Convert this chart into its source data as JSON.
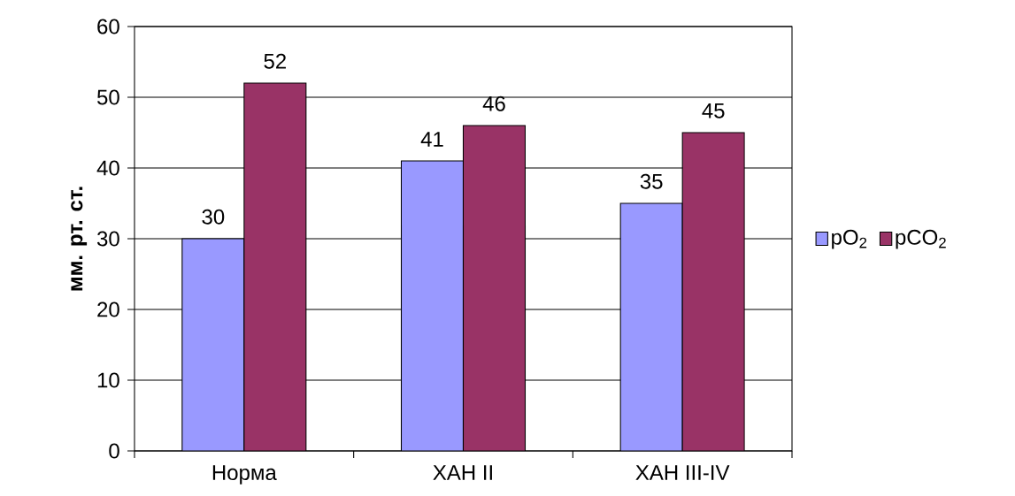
{
  "chart_data": {
    "type": "bar",
    "ylabel": "мм. рт. ст.",
    "categories": [
      "Норма",
      "ХАН II",
      "ХАН III-IV"
    ],
    "series": [
      {
        "name": "pO$_{2}$",
        "color": "#9999ff",
        "values": [
          30,
          41,
          35
        ]
      },
      {
        "name": "pCO$_{2}$",
        "color": "#993366",
        "values": [
          52,
          46,
          45
        ]
      }
    ],
    "ylim": [
      0,
      60
    ],
    "yticks": [
      0,
      10,
      20,
      30,
      40,
      50,
      60
    ],
    "grid": "y",
    "legend": "right",
    "data_labels": true
  }
}
